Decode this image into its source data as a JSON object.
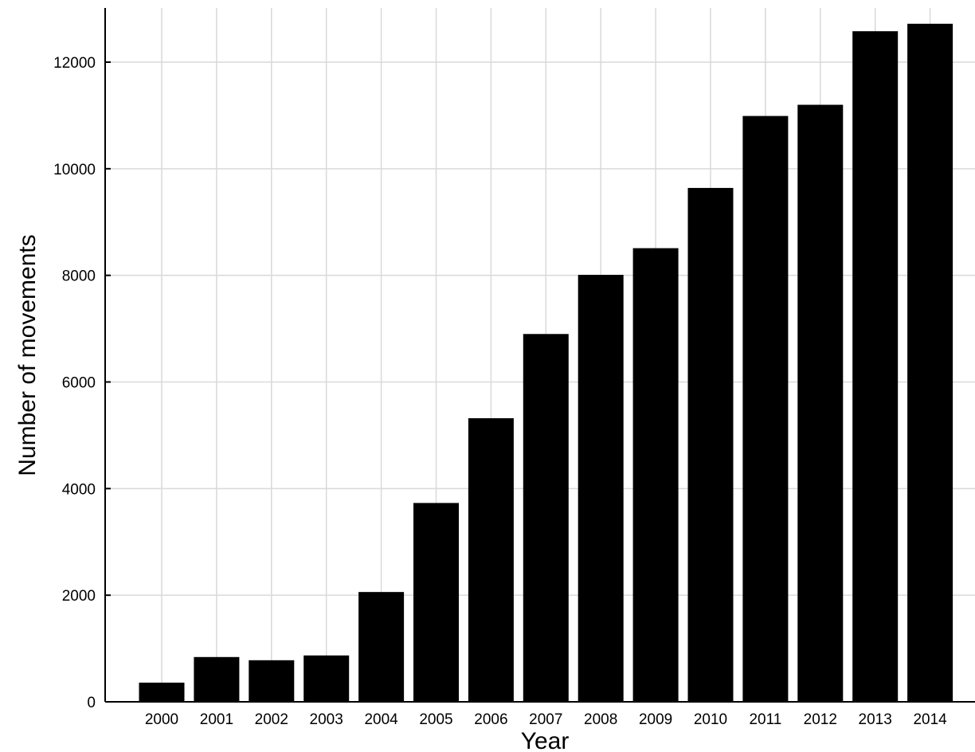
{
  "chart_data": {
    "type": "bar",
    "categories": [
      "2000",
      "2001",
      "2002",
      "2003",
      "2004",
      "2005",
      "2006",
      "2007",
      "2008",
      "2009",
      "2010",
      "2011",
      "2012",
      "2013",
      "2014"
    ],
    "values": [
      360,
      840,
      780,
      870,
      2060,
      3730,
      5320,
      6900,
      8010,
      8510,
      9640,
      10990,
      11200,
      12580,
      12720
    ],
    "xlabel": "Year",
    "ylabel": "Number of movements",
    "ylim": [
      0,
      13000
    ],
    "yticks": [
      0,
      2000,
      4000,
      6000,
      8000,
      10000,
      12000
    ],
    "grid": true,
    "bar_color": "#000000"
  }
}
